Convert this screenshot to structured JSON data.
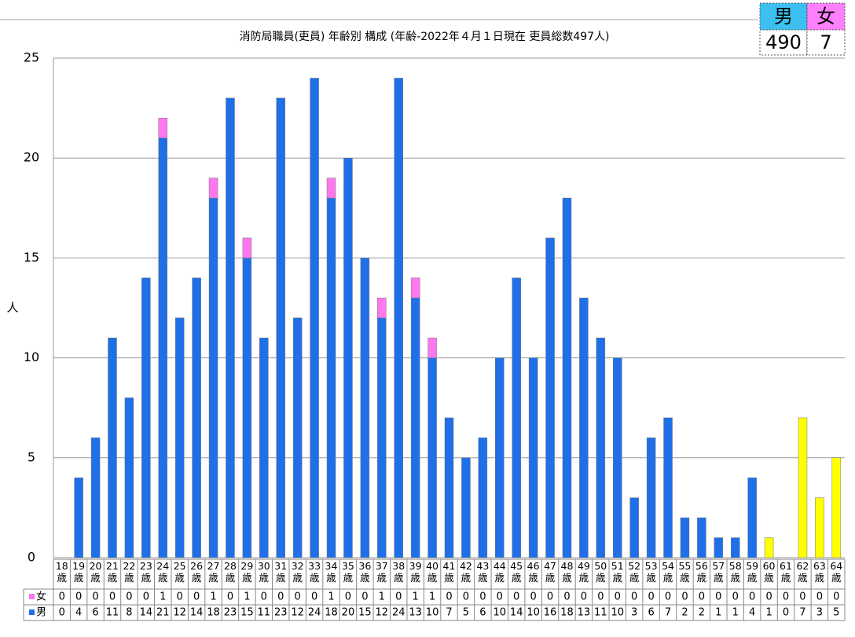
{
  "chart_data": {
    "type": "stacked_bar",
    "title": "消防局職員(吏員) 年齢別 構成 (年齢-2022年４月１日現在 吏員総数497人)",
    "y_label": "人",
    "summary": [
      {
        "label": "男",
        "value": 490
      },
      {
        "label": "女",
        "value": 7
      }
    ],
    "categories": [
      "18歳",
      "19歳",
      "20歳",
      "21歳",
      "22歳",
      "23歳",
      "24歳",
      "25歳",
      "26歳",
      "27歳",
      "28歳",
      "29歳",
      "30歳",
      "31歳",
      "32歳",
      "33歳",
      "34歳",
      "35歳",
      "36歳",
      "37歳",
      "38歳",
      "39歳",
      "40歳",
      "41歳",
      "42歳",
      "43歳",
      "44歳",
      "45歳",
      "46歳",
      "47歳",
      "48歳",
      "49歳",
      "50歳",
      "51歳",
      "52歳",
      "53歳",
      "54歳",
      "55歳",
      "56歳",
      "57歳",
      "58歳",
      "59歳",
      "60歳",
      "61歳",
      "62歳",
      "63歳",
      "64歳"
    ],
    "series": [
      {
        "name": "男",
        "color": "#1f6fe8",
        "point_colors": {
          "42": "#ffff00",
          "43": "#ffff00",
          "44": "#ffff00",
          "45": "#ffff00",
          "46": "#ffff00"
        },
        "values": [
          0,
          4,
          6,
          11,
          8,
          14,
          21,
          12,
          14,
          18,
          23,
          15,
          11,
          23,
          12,
          24,
          18,
          20,
          15,
          12,
          24,
          13,
          10,
          7,
          5,
          6,
          10,
          14,
          10,
          16,
          18,
          13,
          11,
          10,
          3,
          6,
          7,
          2,
          2,
          1,
          1,
          4,
          1,
          0,
          7,
          3,
          5
        ]
      },
      {
        "name": "女",
        "color": "#ff77ee",
        "values": [
          0,
          0,
          0,
          0,
          0,
          0,
          1,
          0,
          0,
          1,
          0,
          1,
          0,
          0,
          0,
          0,
          1,
          0,
          0,
          1,
          0,
          1,
          1,
          0,
          0,
          0,
          0,
          0,
          0,
          0,
          0,
          0,
          0,
          0,
          0,
          0,
          0,
          0,
          0,
          0,
          0,
          0,
          0,
          0,
          0,
          0,
          0
        ]
      }
    ],
    "ylim": [
      0,
      25
    ],
    "yticks": [
      0,
      5,
      10,
      15,
      20,
      25
    ],
    "grid": true
  }
}
